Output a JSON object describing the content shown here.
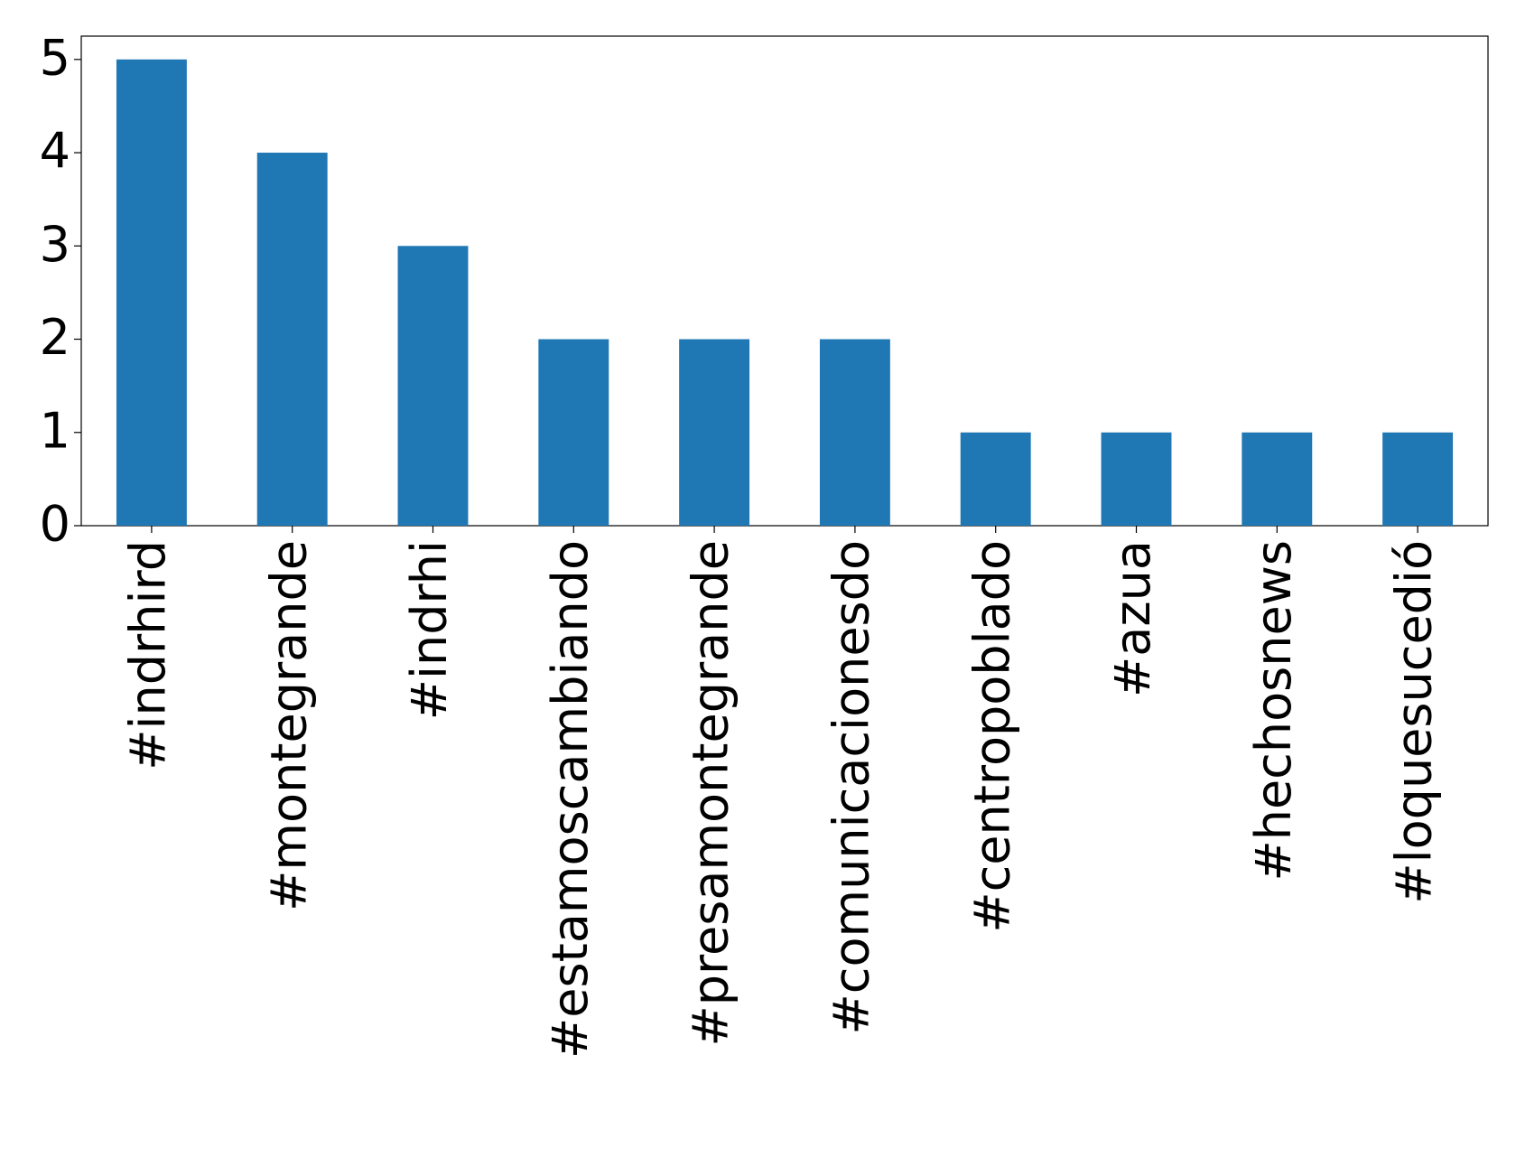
{
  "chart_data": {
    "type": "bar",
    "categories": [
      "#indrhird",
      "#montegrande",
      "#indrhi",
      "#estamoscambiando",
      "#presamontegrande",
      "#comunicacionesdo",
      "#centropoblado",
      "#azua",
      "#hechosnews",
      "#loquesucedió"
    ],
    "values": [
      5,
      4,
      3,
      2,
      2,
      2,
      1,
      1,
      1,
      1
    ],
    "color": "#1f77b4",
    "ylim": [
      0,
      5.25
    ],
    "yticks": [
      0,
      1,
      2,
      3,
      4,
      5
    ],
    "grid": false
  }
}
